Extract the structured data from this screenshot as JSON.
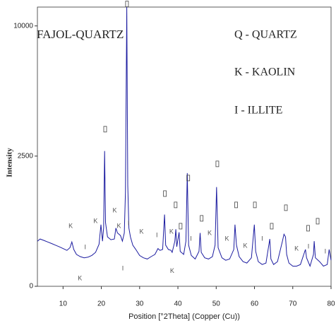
{
  "chart_data": {
    "type": "line",
    "yscale": "sqrt",
    "sample_label": "FAJOL-QUARTZ",
    "legend_entries": [
      "Q - QUARTZ",
      "K - KAOLIN",
      "I - ILLITE"
    ],
    "x_label": "Position [°2Theta] (Copper (Cu))",
    "y_label": "Intensity",
    "xlim": [
      3.3,
      80
    ],
    "ylim": [
      0,
      11500
    ],
    "xticks": [
      10,
      20,
      30,
      40,
      50,
      60,
      70,
      80
    ],
    "yticks": [
      0,
      2500,
      10000
    ],
    "x": [
      3.3,
      4,
      5,
      6,
      7,
      8,
      9,
      10,
      11,
      11.8,
      12.3,
      12.8,
      13.5,
      14.5,
      15.5,
      16.5,
      17.5,
      18.5,
      19.4,
      19.9,
      20.3,
      20.6,
      20.85,
      21.1,
      21.6,
      22.5,
      23.4,
      23.8,
      24.2,
      25,
      25.5,
      26.0,
      26.3,
      26.64,
      26.9,
      27.2,
      27.6,
      28.2,
      29,
      30,
      31,
      32,
      33,
      34,
      34.8,
      35.3,
      36,
      36.5,
      36.8,
      37.5,
      38.2,
      38.5,
      39.2,
      39.45,
      39.7,
      40.3,
      40.6,
      41.5,
      42.1,
      42.45,
      42.8,
      43.5,
      44.5,
      45.5,
      45.8,
      46.1,
      47,
      48,
      49,
      49.7,
      50.1,
      50.5,
      51.5,
      52.5,
      53.5,
      54.6,
      54.9,
      55.3,
      56,
      57,
      58,
      59.2,
      59.95,
      60.3,
      61,
      62,
      63,
      64,
      64.3,
      65,
      66,
      67.3,
      67.7,
      68.1,
      68.4,
      69,
      70,
      71,
      72,
      73.3,
      73.6,
      74.5,
      75.4,
      75.6,
      75.9,
      77,
      78,
      79,
      79.5,
      80
    ],
    "series": [
      {
        "color": "#1c1ca0",
        "values": [
          300,
          330,
          310,
          290,
          270,
          250,
          230,
          210,
          190,
          220,
          290,
          200,
          150,
          130,
          120,
          125,
          140,
          170,
          260,
          560,
          300,
          500,
          2700,
          600,
          360,
          320,
          330,
          500,
          420,
          380,
          300,
          420,
          1300,
          11500,
          1500,
          500,
          360,
          250,
          200,
          140,
          120,
          110,
          130,
          150,
          210,
          190,
          200,
          760,
          250,
          200,
          190,
          170,
          300,
          480,
          230,
          430,
          180,
          150,
          300,
          1890,
          250,
          140,
          110,
          180,
          420,
          170,
          120,
          110,
          130,
          250,
          1450,
          220,
          120,
          100,
          110,
          200,
          560,
          250,
          130,
          90,
          80,
          120,
          560,
          180,
          90,
          70,
          80,
          330,
          110,
          70,
          90,
          300,
          400,
          360,
          150,
          80,
          60,
          60,
          70,
          200,
          120,
          60,
          150,
          300,
          120,
          90,
          60,
          70,
          200,
          100
        ]
      }
    ],
    "annotations": [
      {
        "text": "K",
        "x": 12.0,
        "y": 533
      },
      {
        "text": "K",
        "x": 18.5,
        "y": 625
      },
      {
        "text": "K",
        "x": 23.5,
        "y": 845
      },
      {
        "text": "K",
        "x": 24.6,
        "y": 533
      },
      {
        "text": "K",
        "x": 30.5,
        "y": 438
      },
      {
        "text": "K",
        "x": 38.3,
        "y": 438
      },
      {
        "text": "K",
        "x": 48.3,
        "y": 415
      },
      {
        "text": "K",
        "x": 52.8,
        "y": 331
      },
      {
        "text": "K",
        "x": 57.6,
        "y": 240
      },
      {
        "text": "K",
        "x": 71.0,
        "y": 207
      },
      {
        "text": "K",
        "x": 14.4,
        "y": 9
      },
      {
        "text": "K",
        "x": 38.5,
        "y": 33
      },
      {
        "text": "I",
        "x": 27.1,
        "y": 585
      },
      {
        "text": "I",
        "x": 15.8,
        "y": 223
      },
      {
        "text": "I",
        "x": 34.5,
        "y": 383
      },
      {
        "text": "I",
        "x": 43.4,
        "y": 331
      },
      {
        "text": "I",
        "x": 62.0,
        "y": 331
      },
      {
        "text": "I",
        "x": 74.1,
        "y": 232
      },
      {
        "text": "I",
        "x": 78.5,
        "y": 177
      },
      {
        "text": "I",
        "x": 25.6,
        "y": 46
      }
    ],
    "peak_markers": [
      {
        "x": 26.7,
        "y": 11756
      },
      {
        "x": 21.0,
        "y": 3640
      },
      {
        "x": 42.7,
        "y": 1729
      },
      {
        "x": 50.3,
        "y": 2210
      },
      {
        "x": 36.6,
        "y": 1267
      },
      {
        "x": 39.4,
        "y": 977
      },
      {
        "x": 40.7,
        "y": 533
      },
      {
        "x": 46.2,
        "y": 681
      },
      {
        "x": 55.2,
        "y": 977
      },
      {
        "x": 60.1,
        "y": 977
      },
      {
        "x": 68.2,
        "y": 910
      },
      {
        "x": 64.5,
        "y": 533
      },
      {
        "x": 74.0,
        "y": 497
      },
      {
        "x": 76.5,
        "y": 625
      }
    ]
  }
}
